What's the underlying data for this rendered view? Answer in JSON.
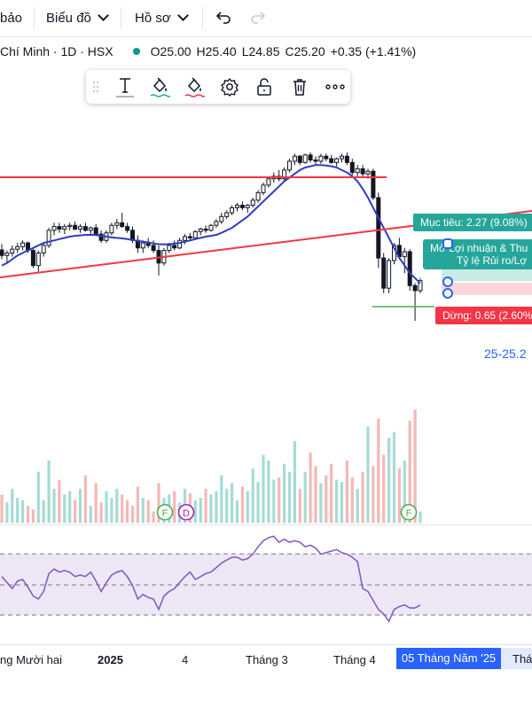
{
  "toolbar": {
    "partial_label": "bảo",
    "chart_menu": "Biểu đồ",
    "profile_menu": "Hồ sơ"
  },
  "legend": {
    "title": "Chí Minh · 1D · HSX",
    "open": "O25.00",
    "high": "H25.40",
    "low": "L24.85",
    "close": "C25.20",
    "change": "+0.35 (+1.41%)"
  },
  "position_tool": {
    "target_label": "Mục tiêu: 2.27 (9.08%)",
    "info_line1": "Mở Lợi nhuận & Thu",
    "info_line2": "Tỷ lệ Rủi ro/Lợ",
    "stop_label": "Dừng: 0.65 (2.60%",
    "price_range": "25-25.2",
    "target_color": "#26a69a",
    "stop_color": "#f23645"
  },
  "event_badges": [
    {
      "letter": "F",
      "color": "#4caf50"
    },
    {
      "letter": "D",
      "color": "#9c27b0"
    },
    {
      "letter": "F",
      "color": "#4caf50"
    }
  ],
  "x_axis": {
    "labels": [
      "ng Mười hai",
      "2025",
      "4",
      "Tháng 3",
      "Tháng 4"
    ],
    "highlighted": "05 Tháng Năm '25",
    "partial": "Thá"
  },
  "colors": {
    "up": "#26a69a",
    "down": "#ef5350",
    "ma": "#2e3dc2",
    "trendline": "#f23645",
    "rsi": "#7e57c2",
    "accent": "#2962ff"
  },
  "chart_data": {
    "type": "candlestick",
    "symbol": "HSX",
    "interval": "1D",
    "x_range": [
      "2024-12-10",
      "2025-05-08"
    ],
    "x_tick_labels": [
      "ng Mười hai",
      "2025",
      "4",
      "Tháng 3",
      "Tháng 4"
    ],
    "ohlc_last": {
      "open": 25.0,
      "high": 25.4,
      "low": 24.85,
      "close": 25.2,
      "change": 0.35,
      "change_pct": 1.41
    },
    "candles": [
      {
        "o": 0.612,
        "h": 0.635,
        "l": 0.575,
        "c": 0.59
      },
      {
        "o": 0.59,
        "h": 0.61,
        "l": 0.56,
        "c": 0.6
      },
      {
        "o": 0.6,
        "h": 0.63,
        "l": 0.585,
        "c": 0.615
      },
      {
        "o": 0.615,
        "h": 0.64,
        "l": 0.6,
        "c": 0.625
      },
      {
        "o": 0.625,
        "h": 0.65,
        "l": 0.61,
        "c": 0.64
      },
      {
        "o": 0.64,
        "h": 0.645,
        "l": 0.6,
        "c": 0.61
      },
      {
        "o": 0.61,
        "h": 0.62,
        "l": 0.54,
        "c": 0.55
      },
      {
        "o": 0.55,
        "h": 0.61,
        "l": 0.52,
        "c": 0.6
      },
      {
        "o": 0.6,
        "h": 0.64,
        "l": 0.585,
        "c": 0.63
      },
      {
        "o": 0.63,
        "h": 0.7,
        "l": 0.62,
        "c": 0.69
      },
      {
        "o": 0.69,
        "h": 0.72,
        "l": 0.67,
        "c": 0.705
      },
      {
        "o": 0.705,
        "h": 0.72,
        "l": 0.68,
        "c": 0.695
      },
      {
        "o": 0.695,
        "h": 0.715,
        "l": 0.675,
        "c": 0.705
      },
      {
        "o": 0.705,
        "h": 0.72,
        "l": 0.69,
        "c": 0.71
      },
      {
        "o": 0.71,
        "h": 0.725,
        "l": 0.69,
        "c": 0.695
      },
      {
        "o": 0.695,
        "h": 0.715,
        "l": 0.68,
        "c": 0.705
      },
      {
        "o": 0.705,
        "h": 0.72,
        "l": 0.685,
        "c": 0.69
      },
      {
        "o": 0.69,
        "h": 0.705,
        "l": 0.67,
        "c": 0.7
      },
      {
        "o": 0.7,
        "h": 0.715,
        "l": 0.67,
        "c": 0.675
      },
      {
        "o": 0.675,
        "h": 0.69,
        "l": 0.64,
        "c": 0.65
      },
      {
        "o": 0.65,
        "h": 0.69,
        "l": 0.64,
        "c": 0.68
      },
      {
        "o": 0.68,
        "h": 0.72,
        "l": 0.67,
        "c": 0.71
      },
      {
        "o": 0.71,
        "h": 0.735,
        "l": 0.695,
        "c": 0.72
      },
      {
        "o": 0.72,
        "h": 0.76,
        "l": 0.7,
        "c": 0.705
      },
      {
        "o": 0.705,
        "h": 0.72,
        "l": 0.68,
        "c": 0.69
      },
      {
        "o": 0.69,
        "h": 0.705,
        "l": 0.64,
        "c": 0.65
      },
      {
        "o": 0.65,
        "h": 0.67,
        "l": 0.6,
        "c": 0.62
      },
      {
        "o": 0.62,
        "h": 0.65,
        "l": 0.6,
        "c": 0.64
      },
      {
        "o": 0.64,
        "h": 0.66,
        "l": 0.62,
        "c": 0.63
      },
      {
        "o": 0.63,
        "h": 0.65,
        "l": 0.6,
        "c": 0.61
      },
      {
        "o": 0.61,
        "h": 0.63,
        "l": 0.51,
        "c": 0.56
      },
      {
        "o": 0.56,
        "h": 0.62,
        "l": 0.55,
        "c": 0.61
      },
      {
        "o": 0.61,
        "h": 0.64,
        "l": 0.6,
        "c": 0.63
      },
      {
        "o": 0.63,
        "h": 0.65,
        "l": 0.61,
        "c": 0.62
      },
      {
        "o": 0.62,
        "h": 0.66,
        "l": 0.615,
        "c": 0.65
      },
      {
        "o": 0.65,
        "h": 0.675,
        "l": 0.635,
        "c": 0.665
      },
      {
        "o": 0.665,
        "h": 0.68,
        "l": 0.65,
        "c": 0.66
      },
      {
        "o": 0.66,
        "h": 0.69,
        "l": 0.655,
        "c": 0.685
      },
      {
        "o": 0.685,
        "h": 0.7,
        "l": 0.67,
        "c": 0.695
      },
      {
        "o": 0.695,
        "h": 0.71,
        "l": 0.68,
        "c": 0.69
      },
      {
        "o": 0.69,
        "h": 0.715,
        "l": 0.685,
        "c": 0.71
      },
      {
        "o": 0.71,
        "h": 0.735,
        "l": 0.7,
        "c": 0.725
      },
      {
        "o": 0.725,
        "h": 0.76,
        "l": 0.715,
        "c": 0.745
      },
      {
        "o": 0.745,
        "h": 0.77,
        "l": 0.735,
        "c": 0.76
      },
      {
        "o": 0.76,
        "h": 0.79,
        "l": 0.75,
        "c": 0.78
      },
      {
        "o": 0.78,
        "h": 0.8,
        "l": 0.765,
        "c": 0.79
      },
      {
        "o": 0.79,
        "h": 0.805,
        "l": 0.77,
        "c": 0.78
      },
      {
        "o": 0.78,
        "h": 0.795,
        "l": 0.76,
        "c": 0.79
      },
      {
        "o": 0.79,
        "h": 0.82,
        "l": 0.78,
        "c": 0.81
      },
      {
        "o": 0.81,
        "h": 0.85,
        "l": 0.8,
        "c": 0.84
      },
      {
        "o": 0.84,
        "h": 0.88,
        "l": 0.83,
        "c": 0.87
      },
      {
        "o": 0.87,
        "h": 0.905,
        "l": 0.86,
        "c": 0.895
      },
      {
        "o": 0.895,
        "h": 0.92,
        "l": 0.88,
        "c": 0.905
      },
      {
        "o": 0.905,
        "h": 0.93,
        "l": 0.885,
        "c": 0.895
      },
      {
        "o": 0.895,
        "h": 0.94,
        "l": 0.885,
        "c": 0.93
      },
      {
        "o": 0.93,
        "h": 0.975,
        "l": 0.92,
        "c": 0.965
      },
      {
        "o": 0.965,
        "h": 0.995,
        "l": 0.95,
        "c": 0.985
      },
      {
        "o": 0.985,
        "h": 0.99,
        "l": 0.95,
        "c": 0.96
      },
      {
        "o": 0.96,
        "h": 0.995,
        "l": 0.955,
        "c": 0.99
      },
      {
        "o": 0.99,
        "h": 1.0,
        "l": 0.96,
        "c": 0.97
      },
      {
        "o": 0.97,
        "h": 0.985,
        "l": 0.95,
        "c": 0.965
      },
      {
        "o": 0.965,
        "h": 0.995,
        "l": 0.955,
        "c": 0.985
      },
      {
        "o": 0.985,
        "h": 0.995,
        "l": 0.965,
        "c": 0.975
      },
      {
        "o": 0.975,
        "h": 0.99,
        "l": 0.955,
        "c": 0.96
      },
      {
        "o": 0.96,
        "h": 0.98,
        "l": 0.945,
        "c": 0.975
      },
      {
        "o": 0.975,
        "h": 0.995,
        "l": 0.96,
        "c": 0.985
      },
      {
        "o": 0.985,
        "h": 1.0,
        "l": 0.95,
        "c": 0.96
      },
      {
        "o": 0.96,
        "h": 0.975,
        "l": 0.91,
        "c": 0.92
      },
      {
        "o": 0.92,
        "h": 0.95,
        "l": 0.9,
        "c": 0.935
      },
      {
        "o": 0.935,
        "h": 0.95,
        "l": 0.9,
        "c": 0.915
      },
      {
        "o": 0.915,
        "h": 0.935,
        "l": 0.895,
        "c": 0.925
      },
      {
        "o": 0.925,
        "h": 0.935,
        "l": 0.81,
        "c": 0.82
      },
      {
        "o": 0.82,
        "h": 0.84,
        "l": 0.54,
        "c": 0.58
      },
      {
        "o": 0.58,
        "h": 0.6,
        "l": 0.44,
        "c": 0.46
      },
      {
        "o": 0.46,
        "h": 0.58,
        "l": 0.44,
        "c": 0.57
      },
      {
        "o": 0.57,
        "h": 0.64,
        "l": 0.555,
        "c": 0.63
      },
      {
        "o": 0.63,
        "h": 0.66,
        "l": 0.575,
        "c": 0.585
      },
      {
        "o": 0.585,
        "h": 0.62,
        "l": 0.52,
        "c": 0.605
      },
      {
        "o": 0.605,
        "h": 0.615,
        "l": 0.45,
        "c": 0.47
      },
      {
        "o": 0.47,
        "h": 0.48,
        "l": 0.33,
        "c": 0.45
      },
      {
        "o": 0.45,
        "h": 0.5,
        "l": 0.44,
        "c": 0.49
      }
    ],
    "ma_curve": [
      0.55,
      0.56,
      0.575,
      0.59,
      0.6,
      0.61,
      0.62,
      0.63,
      0.64,
      0.645,
      0.65,
      0.655,
      0.66,
      0.665,
      0.668,
      0.67,
      0.672,
      0.672,
      0.671,
      0.668,
      0.665,
      0.662,
      0.66,
      0.658,
      0.655,
      0.652,
      0.648,
      0.645,
      0.642,
      0.638,
      0.635,
      0.634,
      0.635,
      0.637,
      0.64,
      0.645,
      0.65,
      0.655,
      0.66,
      0.665,
      0.668,
      0.672,
      0.68,
      0.69,
      0.7,
      0.715,
      0.73,
      0.745,
      0.765,
      0.785,
      0.805,
      0.825,
      0.845,
      0.865,
      0.885,
      0.9,
      0.915,
      0.93,
      0.94,
      0.945,
      0.95,
      0.95,
      0.948,
      0.945,
      0.94,
      0.93,
      0.92,
      0.905,
      0.885,
      0.855,
      0.82,
      0.78,
      0.74,
      0.7,
      0.66,
      0.62,
      0.58,
      0.55,
      0.52,
      0.5,
      0.48
    ],
    "volume_rel": [
      0.25,
      0.18,
      0.3,
      0.22,
      0.2,
      0.15,
      0.12,
      0.45,
      0.2,
      0.55,
      0.3,
      0.38,
      0.25,
      0.28,
      0.2,
      0.3,
      0.42,
      0.15,
      0.35,
      0.18,
      0.28,
      0.22,
      0.3,
      0.25,
      0.2,
      0.15,
      0.32,
      0.22,
      0.2,
      0.1,
      0.35,
      0.22,
      0.25,
      0.28,
      0.18,
      0.3,
      0.26,
      0.2,
      0.22,
      0.3,
      0.25,
      0.28,
      0.42,
      0.3,
      0.35,
      0.2,
      0.32,
      0.28,
      0.48,
      0.36,
      0.6,
      0.55,
      0.38,
      0.4,
      0.52,
      0.45,
      0.72,
      0.3,
      0.45,
      0.62,
      0.5,
      0.35,
      0.42,
      0.52,
      0.38,
      0.36,
      0.55,
      0.4,
      0.3,
      0.45,
      0.85,
      0.5,
      0.92,
      0.6,
      0.75,
      0.8,
      0.48,
      0.55,
      0.9,
      1.0,
      0.1
    ],
    "rsi": [
      60,
      56,
      52,
      57,
      58,
      53,
      47,
      45,
      50,
      62,
      65,
      63,
      64,
      63,
      60,
      61,
      60,
      63,
      57,
      50,
      56,
      61,
      63,
      64,
      60,
      54,
      45,
      48,
      46,
      45,
      38,
      47,
      50,
      52,
      56,
      60,
      63,
      58,
      60,
      62,
      63,
      66,
      69,
      71,
      73,
      73,
      71,
      72,
      75,
      80,
      84,
      86,
      87,
      83,
      85,
      83,
      84,
      83,
      80,
      81,
      79,
      75,
      76,
      77,
      78,
      76,
      75,
      73,
      70,
      52,
      50,
      44,
      38,
      35,
      30,
      38,
      40,
      41,
      39,
      39,
      41
    ],
    "rsi_levels": [
      70,
      50,
      30
    ],
    "target_pct": 9.08,
    "stop_pct": 2.6,
    "target_delta": 2.27,
    "stop_delta": 0.65
  }
}
